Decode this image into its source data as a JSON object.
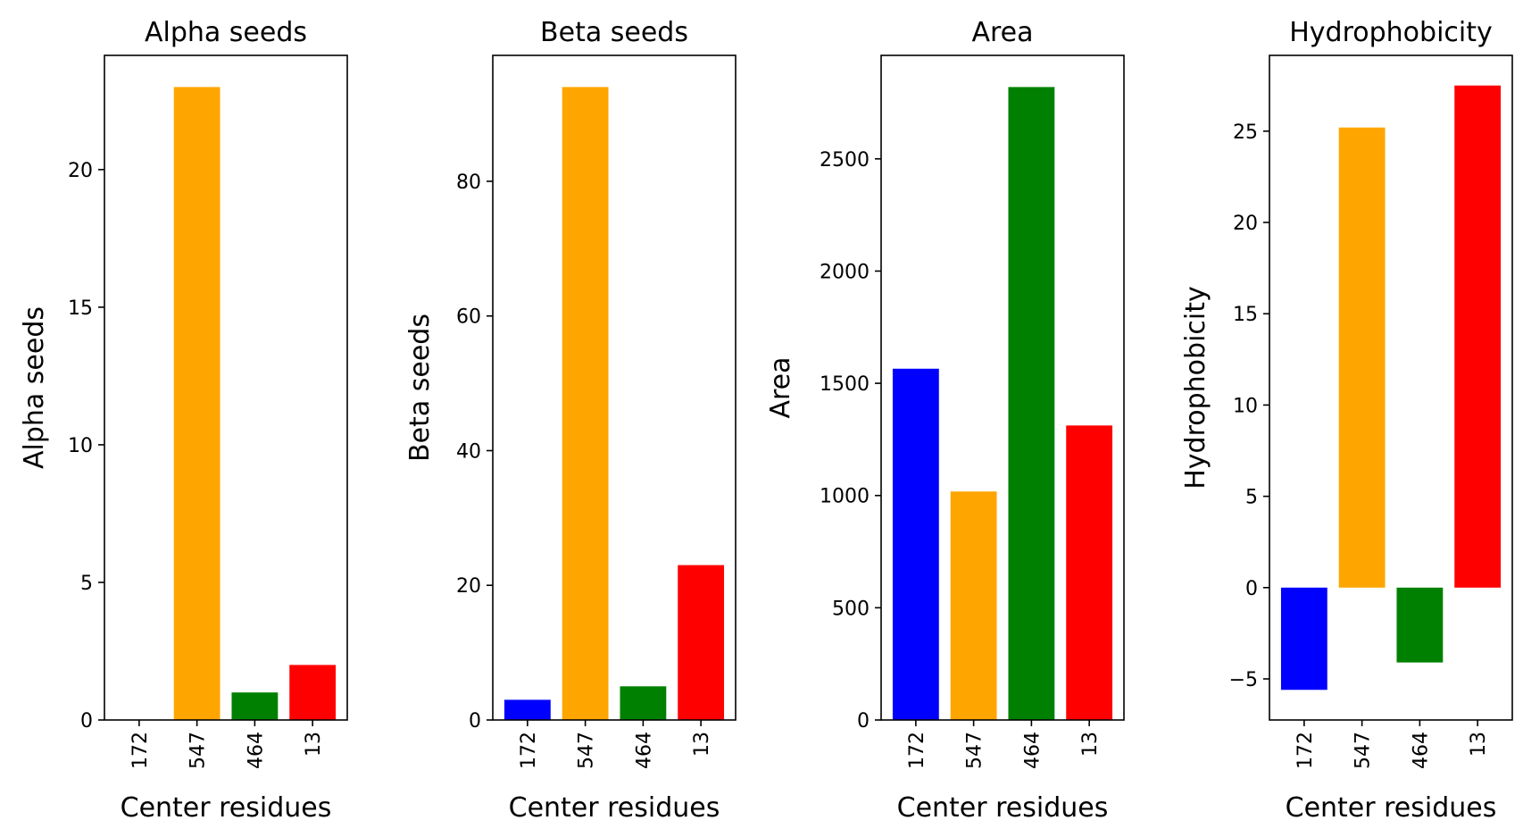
{
  "chart_data": [
    {
      "type": "bar",
      "title": "Alpha seeds",
      "xlabel": "Center residues",
      "ylabel": "Alpha seeds",
      "categories": [
        "172",
        "547",
        "464",
        "13"
      ],
      "values": [
        0,
        23,
        1,
        2
      ],
      "colors": [
        "#0000ff",
        "#ffa500",
        "#008000",
        "#ff0000"
      ],
      "ylim": [
        0,
        24.15
      ],
      "yticks": [
        0,
        5,
        10,
        15,
        20
      ],
      "grid": false
    },
    {
      "type": "bar",
      "title": "Beta seeds",
      "xlabel": "Center residues",
      "ylabel": "Beta seeds",
      "categories": [
        "172",
        "547",
        "464",
        "13"
      ],
      "values": [
        3,
        94,
        5,
        23
      ],
      "colors": [
        "#0000ff",
        "#ffa500",
        "#008000",
        "#ff0000"
      ],
      "ylim": [
        0,
        98.7
      ],
      "yticks": [
        0,
        20,
        40,
        60,
        80
      ],
      "grid": false
    },
    {
      "type": "bar",
      "title": "Area",
      "xlabel": "Center residues",
      "ylabel": "Area",
      "categories": [
        "172",
        "547",
        "464",
        "13"
      ],
      "values": [
        1565,
        1018,
        2820,
        1312
      ],
      "colors": [
        "#0000ff",
        "#ffa500",
        "#008000",
        "#ff0000"
      ],
      "ylim": [
        0,
        2961
      ],
      "yticks": [
        0,
        500,
        1000,
        1500,
        2000,
        2500
      ],
      "grid": false
    },
    {
      "type": "bar",
      "title": "Hydrophobicity",
      "xlabel": "Center residues",
      "ylabel": "Hydrophobicity",
      "categories": [
        "172",
        "547",
        "464",
        "13"
      ],
      "values": [
        -5.6,
        25.2,
        -4.1,
        27.5
      ],
      "colors": [
        "#0000ff",
        "#ffa500",
        "#008000",
        "#ff0000"
      ],
      "ylim": [
        -7.25,
        29.15
      ],
      "yticks": [
        -5,
        0,
        5,
        10,
        15,
        20,
        25
      ],
      "grid": false
    }
  ]
}
